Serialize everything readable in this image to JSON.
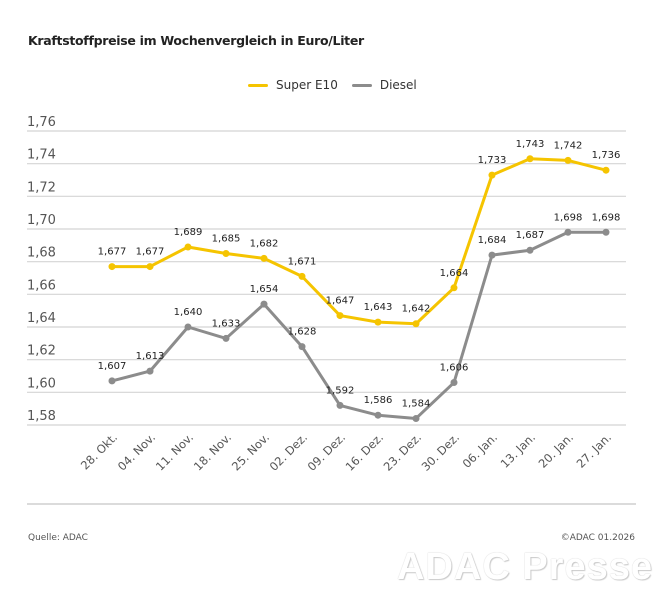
{
  "chart_data": {
    "type": "line",
    "title": "Kraftstoffpreise im Wochenvergleich in Euro/Liter",
    "xlabel": "",
    "ylabel": "",
    "categories": [
      "28. Okt.",
      "04. Nov.",
      "11. Nov.",
      "18. Nov.",
      "25. Nov.",
      "02. Dez.",
      "09. Dez.",
      "16. Dez.",
      "23. Dez.",
      "30. Dez.",
      "06. Jan.",
      "13. Jan.",
      "20. Jan.",
      "27. Jan."
    ],
    "series": [
      {
        "name": "Super E10",
        "color": "#f5c400",
        "values": [
          1.677,
          1.677,
          1.689,
          1.685,
          1.682,
          1.671,
          1.647,
          1.643,
          1.642,
          1.664,
          1.733,
          1.743,
          1.742,
          1.736
        ],
        "labels": [
          "1,677",
          "1,677",
          "1,689",
          "1,685",
          "1,682",
          "1,671",
          "1,647",
          "1,643",
          "1,642",
          "1,664",
          "1,733",
          "1,743",
          "1,742",
          "1,736"
        ]
      },
      {
        "name": "Diesel",
        "color": "#8c8c8c",
        "values": [
          1.607,
          1.613,
          1.64,
          1.633,
          1.654,
          1.628,
          1.592,
          1.586,
          1.584,
          1.606,
          1.684,
          1.687,
          1.698,
          1.698
        ],
        "labels": [
          "1,607",
          "1,613",
          "1,640",
          "1,633",
          "1,654",
          "1,628",
          "1,592",
          "1,586",
          "1,584",
          "1,606",
          "1,684",
          "1,687",
          "1,698",
          "1,698"
        ]
      }
    ],
    "ylim": [
      1.58,
      1.76
    ],
    "yticks": [
      1.76,
      1.74,
      1.72,
      1.7,
      1.68,
      1.66,
      1.64,
      1.62,
      1.6,
      1.58
    ],
    "ytick_labels": [
      "1,76",
      "1,74",
      "1,72",
      "1,70",
      "1,68",
      "1,66",
      "1,64",
      "1,62",
      "1,60",
      "1,58"
    ],
    "grid": true,
    "legend_position": "top-center"
  },
  "legend": {
    "items": [
      {
        "label": "Super E10",
        "color": "#f5c400"
      },
      {
        "label": "Diesel",
        "color": "#8c8c8c"
      }
    ]
  },
  "footer": {
    "source": "Quelle: ADAC",
    "copyright": "©ADAC 01.2026",
    "watermark": "ADAC Presse"
  }
}
